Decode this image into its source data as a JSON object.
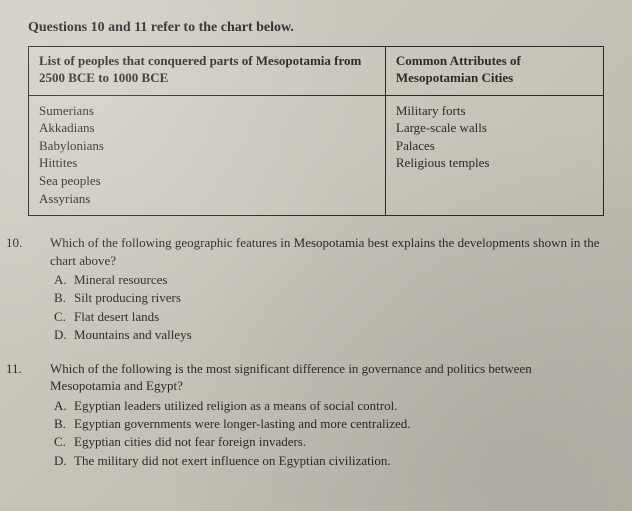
{
  "heading": "Questions 10 and 11 refer to the chart below.",
  "chart": {
    "left_header": "List of peoples that conquered parts of Mesopotamia from 2500 BCE to 1000 BCE",
    "right_header": "Common Attributes of Mesopotamian Cities",
    "peoples": [
      "Sumerians",
      "Akkadians",
      "Babylonians",
      "Hittites",
      "Sea peoples",
      "Assyrians"
    ],
    "attributes": [
      "Military forts",
      "Large-scale walls",
      "Palaces",
      "Religious temples"
    ]
  },
  "q10": {
    "number": "10.",
    "stem": "Which of the following geographic features in Mesopotamia best explains the developments shown in the chart above?",
    "choices": {
      "A": "Mineral resources",
      "B": "Silt producing rivers",
      "C": "Flat desert lands",
      "D": "Mountains and valleys"
    }
  },
  "q11": {
    "number": "11.",
    "stem": "Which of the following is the most significant difference in governance and politics between Mesopotamia and Egypt?",
    "choices": {
      "A": "Egyptian leaders utilized religion as a means of social control.",
      "B": "Egyptian governments were longer-lasting and more centralized.",
      "C": "Egyptian cities did not fear foreign invaders.",
      "D": "The military did not exert influence on Egyptian civilization."
    }
  },
  "letters": {
    "A": "A.",
    "B": "B.",
    "C": "C.",
    "D": "D."
  }
}
